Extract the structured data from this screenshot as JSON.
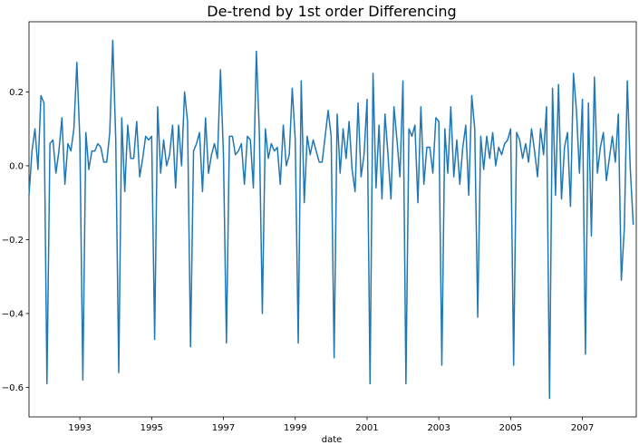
{
  "chart_data": {
    "type": "line",
    "title": "De-trend by 1st order Differencing",
    "xlabel": "date",
    "ylabel": "",
    "xlim": [
      "1991-08",
      "2008-07"
    ],
    "ylim": [
      -0.68,
      0.39
    ],
    "x_ticks": [
      "1993",
      "1995",
      "1997",
      "1999",
      "2001",
      "2003",
      "2005",
      "2007"
    ],
    "y_ticks": [
      0.2,
      0.0,
      -0.2,
      -0.4,
      -0.6
    ],
    "y_tick_labels": [
      "0.2",
      "0.0",
      "−0.2",
      "−0.4",
      "−0.6"
    ],
    "grid": false,
    "legend": "none",
    "line_color": "#1f77b4",
    "series": [
      {
        "x_start": "1991-08",
        "frequency": "monthly",
        "values": [
          -0.08,
          0.04,
          0.1,
          -0.01,
          0.19,
          0.17,
          -0.59,
          0.06,
          0.07,
          -0.02,
          0.04,
          0.13,
          -0.05,
          0.06,
          0.04,
          0.1,
          0.28,
          0.07,
          -0.58,
          0.09,
          -0.01,
          0.04,
          0.04,
          0.06,
          0.05,
          0.01,
          0.01,
          0.09,
          0.34,
          0.07,
          -0.56,
          0.13,
          -0.07,
          0.11,
          0.02,
          0.02,
          0.12,
          -0.03,
          0.02,
          0.08,
          0.07,
          0.08,
          -0.47,
          0.16,
          -0.02,
          0.07,
          0.0,
          0.03,
          0.11,
          -0.06,
          0.11,
          0.0,
          0.2,
          0.12,
          -0.49,
          0.04,
          0.06,
          0.09,
          -0.07,
          0.13,
          -0.02,
          0.03,
          0.06,
          0.02,
          0.26,
          0.03,
          -0.48,
          0.08,
          0.08,
          0.03,
          0.04,
          0.06,
          -0.05,
          0.08,
          0.07,
          -0.06,
          0.31,
          0.09,
          -0.4,
          0.1,
          0.02,
          0.06,
          0.04,
          0.05,
          -0.05,
          0.11,
          0.0,
          0.03,
          0.21,
          0.07,
          -0.48,
          0.23,
          -0.1,
          0.08,
          0.03,
          0.07,
          0.04,
          0.01,
          0.01,
          0.08,
          0.15,
          0.08,
          -0.52,
          0.14,
          -0.02,
          0.1,
          0.02,
          0.12,
          -0.01,
          -0.07,
          0.17,
          -0.03,
          0.03,
          0.18,
          -0.59,
          0.25,
          -0.06,
          0.11,
          -0.09,
          0.14,
          0.03,
          -0.09,
          0.16,
          0.07,
          -0.03,
          0.23,
          -0.59,
          0.1,
          0.08,
          0.11,
          -0.1,
          0.16,
          -0.05,
          0.05,
          0.05,
          -0.02,
          0.13,
          0.12,
          -0.54,
          0.1,
          -0.02,
          0.16,
          -0.03,
          0.07,
          -0.05,
          0.05,
          0.11,
          -0.08,
          0.19,
          0.1,
          -0.41,
          0.08,
          -0.01,
          0.08,
          0.02,
          0.09,
          0.0,
          0.05,
          0.03,
          0.06,
          0.07,
          0.1,
          -0.54,
          0.09,
          0.07,
          0.02,
          0.06,
          0.01,
          0.1,
          0.04,
          -0.03,
          0.1,
          0.03,
          0.16,
          -0.63,
          0.21,
          -0.08,
          0.22,
          -0.09,
          0.05,
          0.09,
          -0.11,
          0.25,
          0.15,
          -0.02,
          0.18,
          -0.51,
          0.17,
          -0.19,
          0.24,
          -0.02,
          0.05,
          0.09,
          -0.04,
          0.02,
          0.08,
          0.01,
          0.14,
          -0.31,
          -0.17,
          0.23,
          -0.01,
          -0.16
        ]
      }
    ]
  }
}
